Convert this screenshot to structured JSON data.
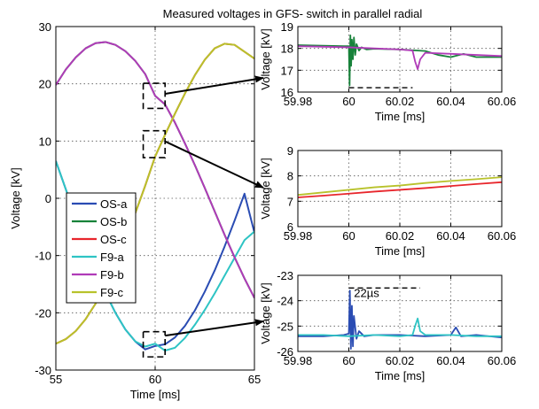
{
  "chart_data": [
    {
      "type": "line",
      "title": "Measured voltages in GFS- switch in parallel radial",
      "xlabel": "Time [ms]",
      "ylabel": "Voltage [kV]",
      "xlim": [
        55,
        65
      ],
      "ylim": [
        -30,
        30
      ],
      "xticks": [
        "55",
        "60",
        "65"
      ],
      "yticks": [
        "-30",
        "-20",
        "-10",
        "0",
        "10",
        "20",
        "30"
      ],
      "grid": true,
      "legend_position": "center-left",
      "legend": [
        "OS-a",
        "OS-b",
        "OS-c",
        "F9-a",
        "F9-b",
        "F9-c"
      ],
      "series_colors": [
        "#2a4cb3",
        "#17823a",
        "#e8262c",
        "#2ec4c4",
        "#b03bb8",
        "#b8c22b"
      ],
      "series": [
        {
          "name": "OS-a",
          "x": [
            55,
            55.5,
            56,
            56.5,
            57,
            57.5,
            58,
            58.5,
            59,
            59.5,
            60,
            60.5,
            61,
            61.5,
            62,
            62.5,
            63,
            63.5,
            64,
            64.5,
            65
          ],
          "y": [
            6.5,
            1.6,
            -3.4,
            -8.1,
            -12.5,
            -16.5,
            -20,
            -22.9,
            -25.0,
            -26.4,
            -25.8,
            -25.5,
            -24.3,
            -22.3,
            -19.6,
            -16.3,
            -12.6,
            -8.4,
            -3.9,
            0.8,
            -6.0
          ]
        },
        {
          "name": "OS-b",
          "x": [
            55,
            55.5,
            56,
            56.5,
            57,
            57.5,
            58,
            58.5,
            59,
            59.5,
            60,
            60.5,
            61,
            61.5,
            62,
            62.5,
            63,
            63.5,
            64,
            64.5,
            65
          ],
          "y": [
            19.8,
            22.5,
            24.6,
            26.2,
            27.1,
            27.3,
            26.8,
            25.7,
            24.0,
            21.7,
            17.9,
            16.4,
            13.2,
            9.6,
            5.8,
            1.8,
            -2.3,
            -6.4,
            -10.3,
            -14.0,
            -17.4
          ]
        },
        {
          "name": "OS-c",
          "x": [
            55,
            55.5,
            56,
            56.5,
            57,
            57.5,
            58,
            58.5,
            59,
            59.5,
            60,
            60.5,
            61,
            61.5,
            62,
            62.5,
            63,
            63.5,
            64,
            64.5,
            65
          ],
          "y": [
            -25.4,
            -24.6,
            -23.2,
            -21.1,
            -18.4,
            -15.1,
            -11.3,
            -7.1,
            -2.6,
            2.2,
            7.3,
            11.1,
            14.8,
            18.3,
            21.5,
            24.2,
            26.2,
            27.0,
            26.8,
            25.6,
            24.4
          ]
        },
        {
          "name": "F9-a",
          "x": [
            55,
            55.5,
            56,
            56.5,
            57,
            57.5,
            58,
            58.5,
            59,
            59.5,
            60,
            60.5,
            61,
            61.5,
            62,
            62.5,
            63,
            63.5,
            64,
            64.5,
            65
          ],
          "y": [
            6.5,
            1.6,
            -3.4,
            -8.1,
            -12.5,
            -16.5,
            -20,
            -22.9,
            -25.0,
            -25.9,
            -25.4,
            -26.6,
            -26.1,
            -24.4,
            -22.1,
            -19.5,
            -16.6,
            -13.5,
            -10.4,
            -7.3,
            -5.8
          ]
        },
        {
          "name": "F9-b",
          "x": [
            55,
            55.5,
            56,
            56.5,
            57,
            57.5,
            58,
            58.5,
            59,
            59.5,
            60,
            60.5,
            61,
            61.5,
            62,
            62.5,
            63,
            63.5,
            64,
            64.5,
            65
          ],
          "y": [
            19.8,
            22.5,
            24.6,
            26.2,
            27.1,
            27.3,
            26.8,
            25.7,
            24.0,
            21.7,
            17.9,
            16.4,
            13.2,
            9.6,
            5.8,
            1.8,
            -2.3,
            -6.4,
            -10.3,
            -14.0,
            -17.4
          ]
        },
        {
          "name": "F9-c",
          "x": [
            55,
            55.5,
            56,
            56.5,
            57,
            57.5,
            58,
            58.5,
            59,
            59.5,
            60,
            60.5,
            61,
            61.5,
            62,
            62.5,
            63,
            63.5,
            64,
            64.5,
            65
          ],
          "y": [
            -25.4,
            -24.6,
            -23.2,
            -21.1,
            -18.4,
            -15.1,
            -11.3,
            -7.1,
            -2.6,
            2.2,
            7.3,
            11.1,
            14.8,
            18.3,
            21.5,
            24.2,
            26.2,
            27.0,
            26.8,
            25.6,
            24.4
          ]
        }
      ],
      "zoom_boxes": [
        {
          "x": [
            59.4,
            60.5
          ],
          "y": [
            15.7,
            20.1
          ]
        },
        {
          "x": [
            59.4,
            60.5
          ],
          "y": [
            7.1,
            11.8
          ]
        },
        {
          "x": [
            59.4,
            60.5
          ],
          "y": [
            -27.7,
            -23.3
          ]
        }
      ]
    },
    {
      "type": "line",
      "xlabel": "Time [ms]",
      "ylabel": "Voltage [kV]",
      "xlim": [
        59.98,
        60.06
      ],
      "ylim": [
        16,
        19
      ],
      "xticks": [
        "59.98",
        "60",
        "60.02",
        "60.04",
        "60.06"
      ],
      "yticks": [
        "16",
        "17",
        "18",
        "19"
      ],
      "grid": true,
      "series": [
        {
          "name": "OS-b",
          "color": "#17823a",
          "x": [
            59.98,
            59.99,
            59.998,
            60.0,
            60.0003,
            60.0006,
            60.0009,
            60.0012,
            60.0016,
            60.002,
            60.0025,
            60.003,
            60.004,
            60.005,
            60.007,
            60.01,
            60.02,
            60.03,
            60.035,
            60.04,
            60.045,
            60.05,
            60.06
          ],
          "y": [
            18.15,
            18.12,
            18.1,
            18.1,
            16.3,
            18.6,
            17.2,
            18.4,
            17.5,
            18.5,
            17.7,
            18.2,
            17.9,
            18.05,
            17.95,
            17.98,
            17.95,
            17.88,
            17.7,
            17.6,
            17.75,
            17.6,
            17.6
          ]
        },
        {
          "name": "F9-b",
          "color": "#b03bb8",
          "x": [
            59.98,
            60.0,
            60.01,
            60.02,
            60.025,
            60.026,
            60.027,
            60.028,
            60.03,
            60.04,
            60.05,
            60.06
          ],
          "y": [
            18.1,
            18.05,
            18.0,
            17.95,
            17.9,
            17.4,
            17.05,
            17.5,
            17.8,
            17.75,
            17.7,
            17.65
          ]
        }
      ],
      "annotation_dashed_y": 16.2
    },
    {
      "type": "line",
      "xlabel": "Time [ms]",
      "ylabel": "Voltage [kV]",
      "xlim": [
        59.98,
        60.06
      ],
      "ylim": [
        6,
        9
      ],
      "xticks": [
        "59.98",
        "60",
        "60.02",
        "60.04",
        "60.06"
      ],
      "yticks": [
        "6",
        "7",
        "8",
        "9"
      ],
      "grid": true,
      "series": [
        {
          "name": "OS-c",
          "color": "#e8262c",
          "x": [
            59.98,
            59.99,
            60.0,
            60.01,
            60.02,
            60.03,
            60.04,
            60.05,
            60.06
          ],
          "y": [
            7.15,
            7.22,
            7.3,
            7.38,
            7.45,
            7.52,
            7.6,
            7.68,
            7.75
          ]
        },
        {
          "name": "F9-c",
          "color": "#b8c22b",
          "x": [
            59.98,
            59.99,
            60.0,
            60.01,
            60.02,
            60.03,
            60.04,
            60.05,
            60.06
          ],
          "y": [
            7.25,
            7.35,
            7.45,
            7.55,
            7.62,
            7.72,
            7.8,
            7.87,
            7.95
          ]
        }
      ]
    },
    {
      "type": "line",
      "xlabel": "Time [ms]",
      "ylabel": "Voltage [kV]",
      "xlim": [
        59.98,
        60.06
      ],
      "ylim": [
        -26,
        -23
      ],
      "xticks": [
        "59.98",
        "60",
        "60.02",
        "60.04",
        "60.06"
      ],
      "yticks": [
        "-26",
        "-25",
        "-24",
        "-23"
      ],
      "grid": true,
      "series": [
        {
          "name": "OS-a",
          "color": "#2a4cb3",
          "x": [
            59.98,
            59.99,
            59.998,
            60.0,
            60.0004,
            60.0008,
            60.0012,
            60.0016,
            60.002,
            60.003,
            60.004,
            60.006,
            60.01,
            60.02,
            60.03,
            60.04,
            60.042,
            60.044,
            60.05,
            60.06
          ],
          "y": [
            -25.4,
            -25.4,
            -25.35,
            -25.3,
            -23.6,
            -25.9,
            -24.2,
            -25.8,
            -24.6,
            -25.5,
            -25.2,
            -25.4,
            -25.35,
            -25.35,
            -25.4,
            -25.35,
            -25.05,
            -25.4,
            -25.35,
            -25.45
          ]
        },
        {
          "name": "F9-a",
          "color": "#2ec4c4",
          "x": [
            59.98,
            59.99,
            60.0,
            60.01,
            60.02,
            60.025,
            60.026,
            60.027,
            60.028,
            60.03,
            60.04,
            60.05,
            60.06
          ],
          "y": [
            -25.35,
            -25.35,
            -25.4,
            -25.35,
            -25.4,
            -25.35,
            -25.0,
            -24.7,
            -25.2,
            -25.35,
            -25.35,
            -25.4,
            -25.4
          ]
        }
      ],
      "annotation_text": "22µs",
      "annotation_dashed_y": -23.5
    }
  ]
}
